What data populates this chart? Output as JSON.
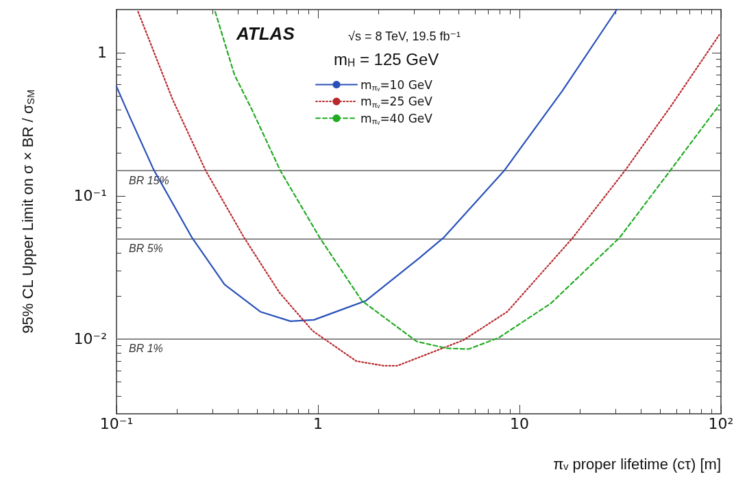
{
  "chart_data": {
    "type": "line",
    "xlabel": "πᵥ proper lifetime (cτ) [m]",
    "ylabel": "95% CL Upper Limit on σ × BR / σ$_{SM}$",
    "annotations": [
      "ATLAS",
      "√s = 8 TeV, 19.5 fb⁻¹",
      "m$_{H}$ = 125 GeV"
    ],
    "log": "xy",
    "xlim": [
      0.1,
      100
    ],
    "xticks": [
      {
        "value": 0.1,
        "label": "10⁻¹"
      },
      1,
      10,
      {
        "value": 100,
        "label": "10²"
      }
    ],
    "ylim": [
      0.003,
      2
    ],
    "yticks": [
      {
        "value": 0.01,
        "label": "10⁻²"
      },
      {
        "value": 0.1,
        "label": "10⁻¹"
      },
      1
    ],
    "grid": false,
    "legend": "top",
    "marker": "none",
    "ref_lines": [
      {
        "axis": "y",
        "value": 0.15,
        "label": "BR 15%",
        "color": "#888888"
      },
      {
        "axis": "y",
        "value": 0.05,
        "label": "BR 5%",
        "color": "#888888"
      },
      {
        "axis": "y",
        "value": 0.01,
        "label": "BR 1%",
        "color": "#888888"
      }
    ],
    "series": [
      {
        "name": "m$_{πᵥ}$=10 GeV",
        "color": "#2850b8",
        "line_style": "solid",
        "x": [
          0.1,
          0.117,
          0.153,
          0.237,
          0.344,
          0.517,
          0.73,
          0.955,
          1.73,
          3.2,
          4.2,
          8.4,
          16.3,
          30.4
        ],
        "values": [
          0.58,
          0.35,
          0.152,
          0.051,
          0.024,
          0.0155,
          0.0133,
          0.0136,
          0.0185,
          0.037,
          0.051,
          0.15,
          0.54,
          2.0
        ]
      },
      {
        "name": "m$_{πᵥ}$=25 GeV",
        "color": "#b8282c",
        "line_style": "dotted",
        "x": [
          0.128,
          0.19,
          0.277,
          0.43,
          0.645,
          0.94,
          1.55,
          2.12,
          2.48,
          5.26,
          8.7,
          18.4,
          33.4,
          56.9,
          98
        ],
        "values": [
          1.93,
          0.47,
          0.15,
          0.051,
          0.021,
          0.0114,
          0.007,
          0.0065,
          0.0065,
          0.0098,
          0.0155,
          0.051,
          0.15,
          0.43,
          1.33
        ]
      },
      {
        "name": "m$_{πᵥ}$=40 GeV",
        "color": "#22aa22",
        "line_style": "dashed",
        "x": [
          0.309,
          0.385,
          0.47,
          0.65,
          1.02,
          1.65,
          3.09,
          4.36,
          5.6,
          7.9,
          14.3,
          31.4,
          56,
          98
        ],
        "values": [
          1.93,
          0.7,
          0.4,
          0.15,
          0.051,
          0.0185,
          0.0096,
          0.0086,
          0.0085,
          0.0102,
          0.0177,
          0.051,
          0.15,
          0.43
        ]
      }
    ]
  }
}
